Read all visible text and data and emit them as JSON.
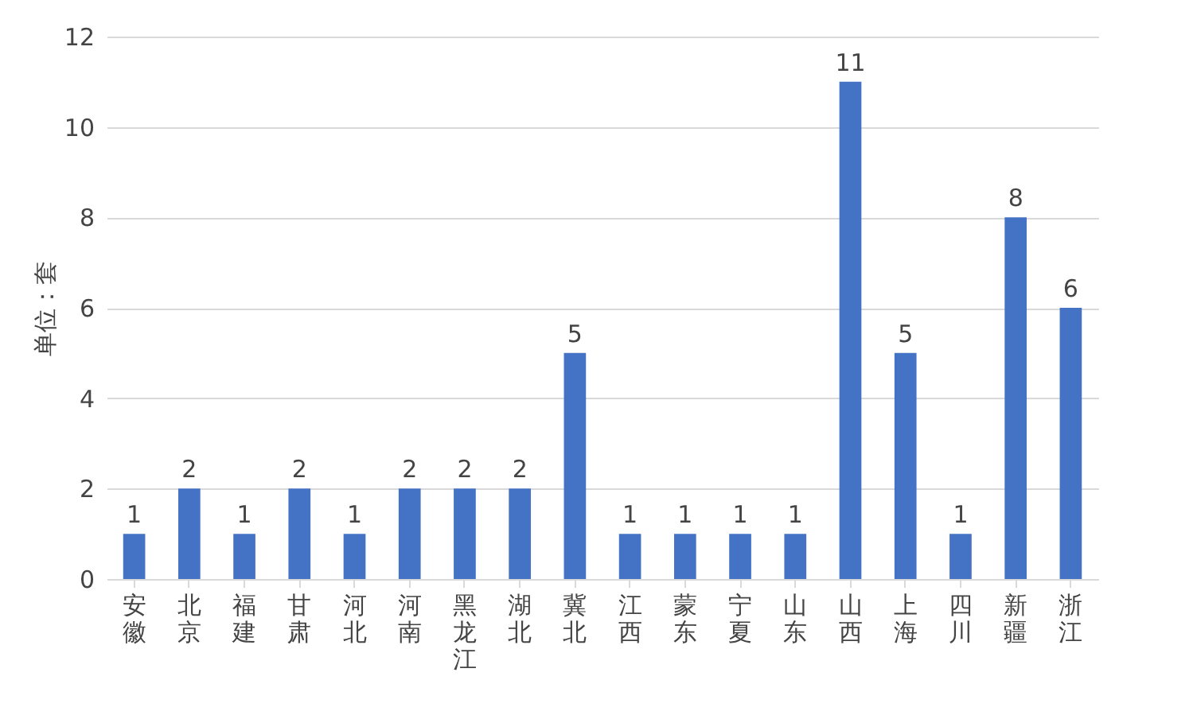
{
  "chart_data": {
    "type": "bar",
    "ylabel": "单位：套",
    "categories": [
      "安徽",
      "北京",
      "福建",
      "甘肃",
      "河北",
      "河南",
      "黑龙江",
      "湖北",
      "冀北",
      "江西",
      "蒙东",
      "宁夏",
      "山东",
      "山西",
      "上海",
      "四川",
      "新疆",
      "浙江"
    ],
    "values": [
      1,
      2,
      1,
      2,
      1,
      2,
      2,
      2,
      5,
      1,
      1,
      1,
      1,
      11,
      5,
      1,
      8,
      6
    ],
    "color": "#4472c4",
    "ylim": [
      0,
      12
    ],
    "yticks": [
      0,
      2,
      4,
      6,
      8,
      10,
      12
    ],
    "grid": "y",
    "data_labels": true
  }
}
